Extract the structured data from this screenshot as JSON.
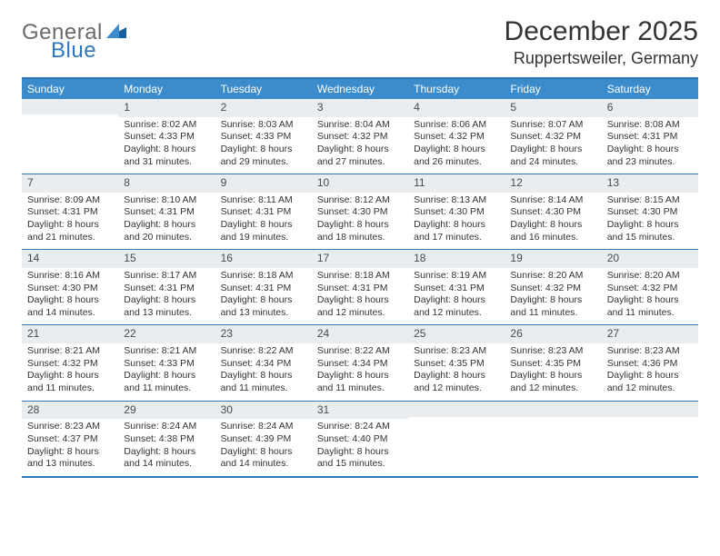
{
  "logo": {
    "general": "General",
    "blue": "Blue"
  },
  "title": "December 2025",
  "location": "Ruppertsweiler, Germany",
  "colors": {
    "brand_text_general": "#6a6a6a",
    "brand_text_blue": "#2f78bd",
    "header_row_bg": "#3c8ccc",
    "header_row_text": "#ffffff",
    "daynum_bg": "#e9edf0",
    "border": "#2f78bd",
    "body_text": "#333333",
    "background": "#ffffff"
  },
  "typography": {
    "title_fontsize_pt": 22,
    "location_fontsize_pt": 13,
    "dow_fontsize_pt": 9,
    "daynum_fontsize_pt": 9,
    "body_fontsize_pt": 8
  },
  "days_of_week": [
    "Sunday",
    "Monday",
    "Tuesday",
    "Wednesday",
    "Thursday",
    "Friday",
    "Saturday"
  ],
  "weeks": [
    [
      {
        "n": "",
        "sr": "",
        "ss": "",
        "dl": ""
      },
      {
        "n": "1",
        "sr": "Sunrise: 8:02 AM",
        "ss": "Sunset: 4:33 PM",
        "dl": "Daylight: 8 hours and 31 minutes."
      },
      {
        "n": "2",
        "sr": "Sunrise: 8:03 AM",
        "ss": "Sunset: 4:33 PM",
        "dl": "Daylight: 8 hours and 29 minutes."
      },
      {
        "n": "3",
        "sr": "Sunrise: 8:04 AM",
        "ss": "Sunset: 4:32 PM",
        "dl": "Daylight: 8 hours and 27 minutes."
      },
      {
        "n": "4",
        "sr": "Sunrise: 8:06 AM",
        "ss": "Sunset: 4:32 PM",
        "dl": "Daylight: 8 hours and 26 minutes."
      },
      {
        "n": "5",
        "sr": "Sunrise: 8:07 AM",
        "ss": "Sunset: 4:32 PM",
        "dl": "Daylight: 8 hours and 24 minutes."
      },
      {
        "n": "6",
        "sr": "Sunrise: 8:08 AM",
        "ss": "Sunset: 4:31 PM",
        "dl": "Daylight: 8 hours and 23 minutes."
      }
    ],
    [
      {
        "n": "7",
        "sr": "Sunrise: 8:09 AM",
        "ss": "Sunset: 4:31 PM",
        "dl": "Daylight: 8 hours and 21 minutes."
      },
      {
        "n": "8",
        "sr": "Sunrise: 8:10 AM",
        "ss": "Sunset: 4:31 PM",
        "dl": "Daylight: 8 hours and 20 minutes."
      },
      {
        "n": "9",
        "sr": "Sunrise: 8:11 AM",
        "ss": "Sunset: 4:31 PM",
        "dl": "Daylight: 8 hours and 19 minutes."
      },
      {
        "n": "10",
        "sr": "Sunrise: 8:12 AM",
        "ss": "Sunset: 4:30 PM",
        "dl": "Daylight: 8 hours and 18 minutes."
      },
      {
        "n": "11",
        "sr": "Sunrise: 8:13 AM",
        "ss": "Sunset: 4:30 PM",
        "dl": "Daylight: 8 hours and 17 minutes."
      },
      {
        "n": "12",
        "sr": "Sunrise: 8:14 AM",
        "ss": "Sunset: 4:30 PM",
        "dl": "Daylight: 8 hours and 16 minutes."
      },
      {
        "n": "13",
        "sr": "Sunrise: 8:15 AM",
        "ss": "Sunset: 4:30 PM",
        "dl": "Daylight: 8 hours and 15 minutes."
      }
    ],
    [
      {
        "n": "14",
        "sr": "Sunrise: 8:16 AM",
        "ss": "Sunset: 4:30 PM",
        "dl": "Daylight: 8 hours and 14 minutes."
      },
      {
        "n": "15",
        "sr": "Sunrise: 8:17 AM",
        "ss": "Sunset: 4:31 PM",
        "dl": "Daylight: 8 hours and 13 minutes."
      },
      {
        "n": "16",
        "sr": "Sunrise: 8:18 AM",
        "ss": "Sunset: 4:31 PM",
        "dl": "Daylight: 8 hours and 13 minutes."
      },
      {
        "n": "17",
        "sr": "Sunrise: 8:18 AM",
        "ss": "Sunset: 4:31 PM",
        "dl": "Daylight: 8 hours and 12 minutes."
      },
      {
        "n": "18",
        "sr": "Sunrise: 8:19 AM",
        "ss": "Sunset: 4:31 PM",
        "dl": "Daylight: 8 hours and 12 minutes."
      },
      {
        "n": "19",
        "sr": "Sunrise: 8:20 AM",
        "ss": "Sunset: 4:32 PM",
        "dl": "Daylight: 8 hours and 11 minutes."
      },
      {
        "n": "20",
        "sr": "Sunrise: 8:20 AM",
        "ss": "Sunset: 4:32 PM",
        "dl": "Daylight: 8 hours and 11 minutes."
      }
    ],
    [
      {
        "n": "21",
        "sr": "Sunrise: 8:21 AM",
        "ss": "Sunset: 4:32 PM",
        "dl": "Daylight: 8 hours and 11 minutes."
      },
      {
        "n": "22",
        "sr": "Sunrise: 8:21 AM",
        "ss": "Sunset: 4:33 PM",
        "dl": "Daylight: 8 hours and 11 minutes."
      },
      {
        "n": "23",
        "sr": "Sunrise: 8:22 AM",
        "ss": "Sunset: 4:34 PM",
        "dl": "Daylight: 8 hours and 11 minutes."
      },
      {
        "n": "24",
        "sr": "Sunrise: 8:22 AM",
        "ss": "Sunset: 4:34 PM",
        "dl": "Daylight: 8 hours and 11 minutes."
      },
      {
        "n": "25",
        "sr": "Sunrise: 8:23 AM",
        "ss": "Sunset: 4:35 PM",
        "dl": "Daylight: 8 hours and 12 minutes."
      },
      {
        "n": "26",
        "sr": "Sunrise: 8:23 AM",
        "ss": "Sunset: 4:35 PM",
        "dl": "Daylight: 8 hours and 12 minutes."
      },
      {
        "n": "27",
        "sr": "Sunrise: 8:23 AM",
        "ss": "Sunset: 4:36 PM",
        "dl": "Daylight: 8 hours and 12 minutes."
      }
    ],
    [
      {
        "n": "28",
        "sr": "Sunrise: 8:23 AM",
        "ss": "Sunset: 4:37 PM",
        "dl": "Daylight: 8 hours and 13 minutes."
      },
      {
        "n": "29",
        "sr": "Sunrise: 8:24 AM",
        "ss": "Sunset: 4:38 PM",
        "dl": "Daylight: 8 hours and 14 minutes."
      },
      {
        "n": "30",
        "sr": "Sunrise: 8:24 AM",
        "ss": "Sunset: 4:39 PM",
        "dl": "Daylight: 8 hours and 14 minutes."
      },
      {
        "n": "31",
        "sr": "Sunrise: 8:24 AM",
        "ss": "Sunset: 4:40 PM",
        "dl": "Daylight: 8 hours and 15 minutes."
      },
      {
        "n": "",
        "sr": "",
        "ss": "",
        "dl": ""
      },
      {
        "n": "",
        "sr": "",
        "ss": "",
        "dl": ""
      },
      {
        "n": "",
        "sr": "",
        "ss": "",
        "dl": ""
      }
    ]
  ]
}
